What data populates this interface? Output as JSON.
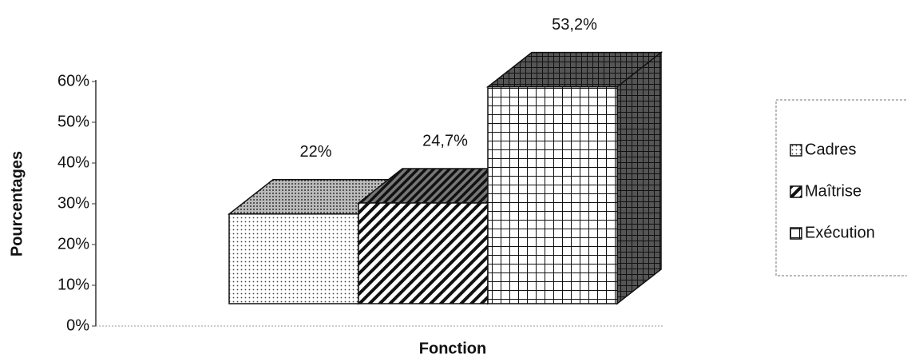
{
  "chart_data": {
    "type": "bar3d",
    "y_label": "Pourcentages",
    "x_label": "Fonction",
    "categories": [
      null
    ],
    "series": [
      {
        "name": "Cadres",
        "values": [
          22
        ],
        "value_labels": [
          "22%"
        ]
      },
      {
        "name": "Maîtrise",
        "values": [
          24.7
        ],
        "value_labels": [
          "24,7%"
        ]
      },
      {
        "name": "Exécution",
        "values": [
          53.2
        ],
        "value_labels": [
          "53,2%"
        ]
      }
    ],
    "ylim": [
      0,
      60
    ],
    "yticks": [
      {
        "value": 0,
        "label": "0%"
      },
      {
        "value": 10,
        "label": "10%"
      },
      {
        "value": 20,
        "label": "20%"
      },
      {
        "value": 30,
        "label": "30%"
      },
      {
        "value": 40,
        "label": "40%"
      },
      {
        "value": 50,
        "label": "50%"
      },
      {
        "value": 60,
        "label": "60%"
      }
    ],
    "legend": "right"
  }
}
